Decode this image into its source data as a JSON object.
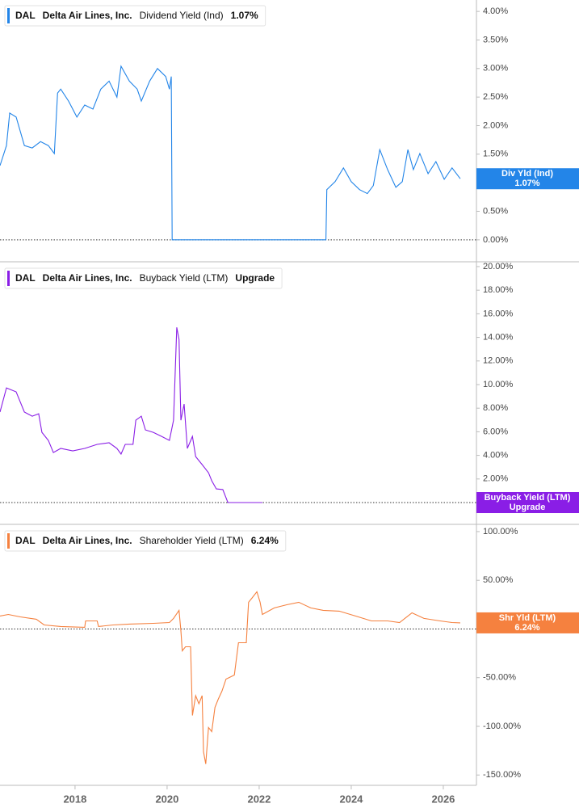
{
  "chart_data": [
    {
      "type": "line",
      "ticker": "DAL",
      "company": "Delta Air Lines, Inc.",
      "badge_label": "Div Yld (Ind)",
      "current_label": "1.07%",
      "zero_line": true,
      "x": [
        2016.37,
        2016.51,
        2016.58,
        2016.72,
        2016.9,
        2017.07,
        2017.25,
        2017.42,
        2017.55,
        2017.62,
        2017.69,
        2017.86,
        2018.04,
        2018.21,
        2018.39,
        2018.56,
        2018.74,
        2018.91,
        2019.0,
        2019.18,
        2019.35,
        2019.44,
        2019.62,
        2019.79,
        2019.97,
        2020.05,
        2020.09,
        2020.11,
        2023.45,
        2023.47,
        2023.65,
        2023.83,
        2024.0,
        2024.18,
        2024.35,
        2024.48,
        2024.62,
        2024.79,
        2024.97,
        2025.11,
        2025.23,
        2025.35,
        2025.49,
        2025.67,
        2025.84,
        2026.02,
        2026.19,
        2026.37
      ],
      "series": [
        {
          "name": "Dividend Yield (Ind)",
          "color": "#2385e8",
          "values": [
            1.3,
            1.65,
            2.22,
            2.15,
            1.65,
            1.61,
            1.72,
            1.65,
            1.51,
            2.57,
            2.64,
            2.43,
            2.15,
            2.36,
            2.29,
            2.64,
            2.78,
            2.5,
            3.04,
            2.78,
            2.64,
            2.43,
            2.78,
            3.0,
            2.86,
            2.64,
            2.86,
            0,
            0,
            0.88,
            1.02,
            1.26,
            1.02,
            0.88,
            0.81,
            0.95,
            1.58,
            1.23,
            0.92,
            1.02,
            1.58,
            1.23,
            1.51,
            1.16,
            1.37,
            1.06,
            1.26,
            1.07
          ]
        }
      ],
      "xlim": [
        2016.37,
        2026.72
      ],
      "ylim": [
        -0.37,
        4.2
      ],
      "yticks": [
        {
          "value": 0,
          "label": "0.00%"
        },
        {
          "value": 0.5,
          "label": "0.50%"
        },
        {
          "value": 1,
          "label": "1.00%"
        },
        {
          "value": 1.5,
          "label": "1.50%"
        },
        {
          "value": 2,
          "label": "2.00%"
        },
        {
          "value": 2.5,
          "label": "2.50%"
        },
        {
          "value": 3,
          "label": "3.00%"
        },
        {
          "value": 3.5,
          "label": "3.50%"
        },
        {
          "value": 4,
          "label": "4.00%"
        }
      ]
    },
    {
      "type": "line",
      "ticker": "DAL",
      "company": "Delta Air Lines, Inc.",
      "badge_label": "Buyback Yield (LTM)",
      "current_label": "Upgrade",
      "zero_line": true,
      "x": [
        2016.37,
        2016.51,
        2016.72,
        2016.9,
        2017.07,
        2017.21,
        2017.28,
        2017.42,
        2017.53,
        2017.69,
        2017.95,
        2018.21,
        2018.48,
        2018.74,
        2018.91,
        2019.0,
        2019.09,
        2019.26,
        2019.32,
        2019.44,
        2019.53,
        2019.7,
        2019.88,
        2020.05,
        2020.14,
        2020.21,
        2020.26,
        2020.3,
        2020.37,
        2020.44,
        2020.55,
        2020.62,
        2020.76,
        2020.9,
        2020.97,
        2021.07,
        2021.21,
        2021.32,
        2022.07
      ],
      "series": [
        {
          "name": "Buyback Yield (LTM)",
          "color": "#8a1ee6",
          "values": [
            7.67,
            9.72,
            9.38,
            7.67,
            7.32,
            7.53,
            5.95,
            5.27,
            4.24,
            4.59,
            4.38,
            4.59,
            4.93,
            5.07,
            4.59,
            4.11,
            4.93,
            4.93,
            6.98,
            7.32,
            6.16,
            5.95,
            5.61,
            5.27,
            6.98,
            14.85,
            13.83,
            6.98,
            8.35,
            4.59,
            5.61,
            3.9,
            3.22,
            2.53,
            1.85,
            1.16,
            1.1,
            0,
            0
          ]
        }
      ],
      "xlim": [
        2016.37,
        2026.72
      ],
      "ylim": [
        -1.78,
        20.34
      ],
      "yticks": [
        {
          "value": 2,
          "label": "2.00%"
        },
        {
          "value": 4,
          "label": "4.00%"
        },
        {
          "value": 6,
          "label": "6.00%"
        },
        {
          "value": 8,
          "label": "8.00%"
        },
        {
          "value": 10,
          "label": "10.00%"
        },
        {
          "value": 12,
          "label": "12.00%"
        },
        {
          "value": 14,
          "label": "14.00%"
        },
        {
          "value": 16,
          "label": "16.00%"
        },
        {
          "value": 18,
          "label": "18.00%"
        },
        {
          "value": 20,
          "label": "20.00%"
        }
      ]
    },
    {
      "type": "line",
      "ticker": "DAL",
      "company": "Delta Air Lines, Inc.",
      "badge_label": "Shr Yld (LTM)",
      "current_label": "6.24%",
      "zero_line": true,
      "x": [
        2016.37,
        2016.55,
        2016.81,
        2017.16,
        2017.33,
        2017.69,
        2018.21,
        2018.23,
        2018.48,
        2018.51,
        2018.83,
        2019.18,
        2019.7,
        2020.05,
        2020.14,
        2020.26,
        2020.3,
        2020.33,
        2020.4,
        2020.51,
        2020.55,
        2020.62,
        2020.69,
        2020.76,
        2020.79,
        2020.84,
        2020.9,
        2020.97,
        2021.04,
        2021.11,
        2021.19,
        2021.28,
        2021.46,
        2021.55,
        2021.72,
        2021.77,
        2021.84,
        2021.95,
        2022.02,
        2022.07,
        2022.33,
        2022.6,
        2022.86,
        2023.12,
        2023.39,
        2023.74,
        2024.09,
        2024.44,
        2024.79,
        2025.05,
        2025.32,
        2025.58,
        2025.93,
        2026.19,
        2026.37
      ],
      "series": [
        {
          "name": "Shareholder Yield (LTM)",
          "color": "#f5813f",
          "values": [
            13.3,
            14.9,
            12.4,
            10.0,
            4.1,
            2.5,
            1.7,
            8.3,
            8.3,
            2.5,
            4.1,
            5.0,
            5.8,
            6.6,
            10.8,
            19.1,
            -1.7,
            -22.4,
            -18.3,
            -18.3,
            -88.8,
            -68.5,
            -76.8,
            -68.5,
            -126.1,
            -138.6,
            -101.2,
            -105.4,
            -80.5,
            -72.2,
            -63.9,
            -51.5,
            -47.3,
            -14.1,
            -14.1,
            27.4,
            31.5,
            38.2,
            27.4,
            14.9,
            21.6,
            24.9,
            27.4,
            21.6,
            19.1,
            18.3,
            13.3,
            8.3,
            8.3,
            6.6,
            16.6,
            10.8,
            8.3,
            6.6,
            6.24
          ]
        }
      ],
      "xlim": [
        2016.37,
        2026.72
      ],
      "ylim": [
        -160.6,
        106.6
      ],
      "yticks": [
        {
          "value": -150,
          "label": "-150.00%"
        },
        {
          "value": -100,
          "label": "-100.00%"
        },
        {
          "value": -50,
          "label": "-50.00%"
        },
        {
          "value": 0,
          "label": "0.00%"
        },
        {
          "value": 50,
          "label": "50.00%"
        },
        {
          "value": 100,
          "label": "100.00%"
        }
      ],
      "xticks": [
        2018,
        2020,
        2022,
        2024,
        2026
      ]
    }
  ]
}
